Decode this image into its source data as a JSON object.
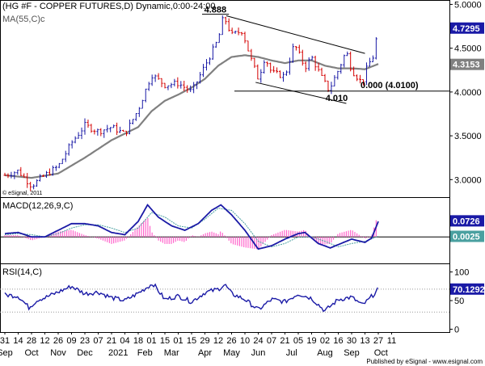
{
  "chart_data": {
    "type": "candlestick",
    "title": "(HG #F - COPPER FUTURES,D) Dynamic,0:00-24:00",
    "source_note": "© eSignal, 2011",
    "footer": "Published by eSignal - www.esignal.com",
    "x_axis": {
      "date_labels": [
        "31",
        "14",
        "28",
        "12",
        "26",
        "09",
        "23",
        "07",
        "21",
        "04",
        "18",
        "01",
        "15",
        "01",
        "15",
        "29",
        "12",
        "26",
        "10",
        "24",
        "07",
        "21",
        "05",
        "19",
        "02",
        "16",
        "30",
        "13",
        "27",
        "11"
      ],
      "month_labels": [
        {
          "label": "Sep",
          "at": 0
        },
        {
          "label": "Oct",
          "at": 2
        },
        {
          "label": "Nov",
          "at": 4
        },
        {
          "label": "Dec",
          "at": 6
        },
        {
          "label": "2021",
          "at": 8.5
        },
        {
          "label": "Feb",
          "at": 10.5
        },
        {
          "label": "Mar",
          "at": 12.5
        },
        {
          "label": "Apr",
          "at": 15
        },
        {
          "label": "May",
          "at": 17
        },
        {
          "label": "Jun",
          "at": 19
        },
        {
          "label": "Jul",
          "at": 21.5
        },
        {
          "label": "Aug",
          "at": 24
        },
        {
          "label": "Sep",
          "at": 26
        },
        {
          "label": "Oct",
          "at": 28.2
        }
      ]
    },
    "price_panel": {
      "ylim": [
        2.8,
        5.05
      ],
      "ticks": [
        "3.0000",
        "3.5000",
        "4.0000",
        "4.5000",
        "5.0000"
      ],
      "tick_values": [
        3.0,
        3.5,
        4.0,
        4.5,
        5.0
      ],
      "ma_label": "MA(55,C)c",
      "last_price": {
        "value": 4.7295,
        "label": "4.7295"
      },
      "ma_value": {
        "value": 4.3153,
        "label": "4.3153"
      },
      "level_line": {
        "value": 4.01,
        "label": "0.000 (4.0100)"
      },
      "annotations": [
        {
          "text": "4.888",
          "x": 16.4,
          "y": 4.888
        },
        {
          "text": "4.010",
          "x": 25.5,
          "y": 3.88
        }
      ],
      "trendlines": [
        {
          "from": [
            16.6,
            4.87
          ],
          "to": [
            27.0,
            4.44
          ]
        },
        {
          "from": [
            18.8,
            4.11
          ],
          "to": [
            25.6,
            3.87
          ]
        }
      ],
      "ohlc_anchors": [
        [
          0,
          3.05
        ],
        [
          1,
          3.1
        ],
        [
          2,
          2.93
        ],
        [
          3,
          3.05
        ],
        [
          4,
          3.15
        ],
        [
          5,
          3.42
        ],
        [
          6,
          3.62
        ],
        [
          7,
          3.55
        ],
        [
          8,
          3.6
        ],
        [
          9,
          3.52
        ],
        [
          10,
          3.8
        ],
        [
          11,
          4.2
        ],
        [
          12,
          4.08
        ],
        [
          13,
          4.1
        ],
        [
          14,
          4.0
        ],
        [
          15,
          4.3
        ],
        [
          16,
          4.6
        ],
        [
          16.4,
          4.87
        ],
        [
          17,
          4.65
        ],
        [
          17.8,
          4.7
        ],
        [
          18.4,
          4.4
        ],
        [
          19,
          4.15
        ],
        [
          19.5,
          4.4
        ],
        [
          20,
          4.22
        ],
        [
          21,
          4.18
        ],
        [
          21.7,
          4.55
        ],
        [
          22.5,
          4.28
        ],
        [
          23,
          4.4
        ],
        [
          23.8,
          4.15
        ],
        [
          24.3,
          4.02
        ],
        [
          25,
          4.25
        ],
        [
          25.6,
          4.47
        ],
        [
          26,
          4.25
        ],
        [
          26.8,
          4.1
        ],
        [
          27.2,
          4.3
        ],
        [
          27.6,
          4.4
        ],
        [
          28.0,
          4.73
        ]
      ],
      "ma_anchors": [
        [
          0,
          3.05
        ],
        [
          2,
          3.02
        ],
        [
          4,
          3.07
        ],
        [
          6,
          3.25
        ],
        [
          7,
          3.35
        ],
        [
          8,
          3.45
        ],
        [
          10,
          3.6
        ],
        [
          11,
          3.78
        ],
        [
          12,
          3.9
        ],
        [
          13,
          3.97
        ],
        [
          14,
          4.05
        ],
        [
          15,
          4.15
        ],
        [
          16,
          4.3
        ],
        [
          17,
          4.4
        ],
        [
          18,
          4.42
        ],
        [
          19,
          4.4
        ],
        [
          20,
          4.36
        ],
        [
          21,
          4.33
        ],
        [
          22,
          4.36
        ],
        [
          23,
          4.36
        ],
        [
          24,
          4.3
        ],
        [
          25,
          4.27
        ],
        [
          26,
          4.27
        ],
        [
          27,
          4.26
        ],
        [
          28.0,
          4.32
        ]
      ]
    },
    "macd_panel": {
      "label": "MACD(12,26,9,C)",
      "ylim": [
        -0.12,
        0.18
      ],
      "zero_value": 0.0,
      "signal_line_value": 0.0025,
      "macd_last": {
        "value": 0.0726,
        "label": "0.0726"
      },
      "signal_last": {
        "value": 0.0025,
        "label": "0.0025"
      },
      "macd_anchors": [
        [
          0,
          0.015
        ],
        [
          1,
          0.02
        ],
        [
          2,
          0.0
        ],
        [
          3,
          0.0
        ],
        [
          4,
          0.03
        ],
        [
          5,
          0.06
        ],
        [
          6,
          0.06
        ],
        [
          7,
          0.05
        ],
        [
          8,
          0.02
        ],
        [
          9,
          0.01
        ],
        [
          10,
          0.07
        ],
        [
          10.7,
          0.145
        ],
        [
          11.5,
          0.09
        ],
        [
          12.5,
          0.05
        ],
        [
          13.5,
          0.03
        ],
        [
          14.5,
          0.06
        ],
        [
          15.5,
          0.12
        ],
        [
          16.2,
          0.145
        ],
        [
          17,
          0.1
        ],
        [
          18,
          0.03
        ],
        [
          19,
          -0.055
        ],
        [
          20,
          -0.04
        ],
        [
          21,
          -0.01
        ],
        [
          22,
          0.015
        ],
        [
          22.5,
          0.02
        ],
        [
          23.5,
          -0.03
        ],
        [
          24.4,
          -0.05
        ],
        [
          25,
          -0.035
        ],
        [
          26,
          -0.01
        ],
        [
          27,
          -0.025
        ],
        [
          27.5,
          -0.005
        ],
        [
          28.0,
          0.07
        ]
      ],
      "signal_anchors": [
        [
          0,
          0.01
        ],
        [
          1,
          0.015
        ],
        [
          2,
          0.01
        ],
        [
          3,
          0.0
        ],
        [
          4,
          0.015
        ],
        [
          5,
          0.04
        ],
        [
          6,
          0.055
        ],
        [
          7,
          0.055
        ],
        [
          8,
          0.04
        ],
        [
          9,
          0.02
        ],
        [
          10,
          0.04
        ],
        [
          11,
          0.11
        ],
        [
          12,
          0.09
        ],
        [
          13,
          0.05
        ],
        [
          14,
          0.04
        ],
        [
          15,
          0.08
        ],
        [
          16,
          0.13
        ],
        [
          17,
          0.12
        ],
        [
          18,
          0.06
        ],
        [
          19,
          -0.02
        ],
        [
          20,
          -0.045
        ],
        [
          21,
          -0.03
        ],
        [
          22,
          0.0
        ],
        [
          23,
          0.0
        ],
        [
          24,
          -0.02
        ],
        [
          25,
          -0.045
        ],
        [
          26,
          -0.03
        ],
        [
          27,
          -0.02
        ],
        [
          28.0,
          0.0025
        ]
      ]
    },
    "rsi_panel": {
      "label": "RSI(14,C)",
      "ylim": [
        -5,
        115
      ],
      "ticks": [
        "0",
        "50",
        "100"
      ],
      "tick_values": [
        0,
        50,
        100
      ],
      "levels": [
        30,
        70
      ],
      "rsi_last": {
        "value": 70.1292,
        "label": "70.1292"
      },
      "rsi_anchors": [
        [
          0,
          60
        ],
        [
          1,
          58
        ],
        [
          1.8,
          38
        ],
        [
          2.5,
          52
        ],
        [
          3,
          55
        ],
        [
          4,
          65
        ],
        [
          5,
          75
        ],
        [
          6,
          62
        ],
        [
          7,
          65
        ],
        [
          8,
          55
        ],
        [
          9,
          50
        ],
        [
          10,
          63
        ],
        [
          11.1,
          80
        ],
        [
          12,
          52
        ],
        [
          13,
          58
        ],
        [
          14,
          48
        ],
        [
          15,
          64
        ],
        [
          16,
          70
        ],
        [
          16.5,
          78
        ],
        [
          17,
          62
        ],
        [
          18,
          52
        ],
        [
          19,
          34
        ],
        [
          20,
          52
        ],
        [
          21,
          48
        ],
        [
          22,
          62
        ],
        [
          23,
          54
        ],
        [
          24,
          32
        ],
        [
          25,
          52
        ],
        [
          26,
          56
        ],
        [
          26.8,
          42
        ],
        [
          27.3,
          52
        ],
        [
          28.0,
          70
        ]
      ]
    },
    "colors": {
      "up": "#1a1aa6",
      "down": "#d40000",
      "ma": "#808080",
      "macd": "#1a1aa6",
      "signal": "#4aa0a0",
      "histogram": "#ff66cc",
      "rsi": "#1a1aa6",
      "last_tag": "#1a1aa6",
      "ma_tag": "#808080"
    }
  }
}
